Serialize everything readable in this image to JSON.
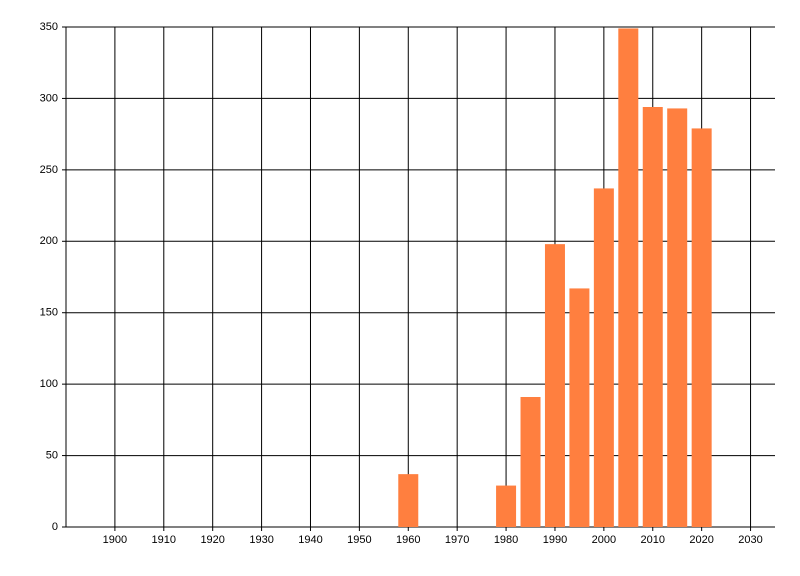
{
  "chart_data": {
    "type": "bar",
    "x": [
      1960,
      1980,
      1985,
      1990,
      1995,
      2000,
      2005,
      2010,
      2015,
      2020
    ],
    "values": [
      37,
      29,
      91,
      198,
      167,
      237,
      349,
      294,
      293,
      279
    ],
    "color": "#ff7f3f",
    "xlim": [
      1890,
      2035
    ],
    "xticks": [
      1900,
      1910,
      1920,
      1930,
      1940,
      1950,
      1960,
      1970,
      1980,
      1990,
      2000,
      2010,
      2020,
      2030
    ],
    "ylim": [
      0,
      350
    ],
    "yticks": [
      0,
      50,
      100,
      150,
      200,
      250,
      300,
      350
    ],
    "grid": true
  }
}
